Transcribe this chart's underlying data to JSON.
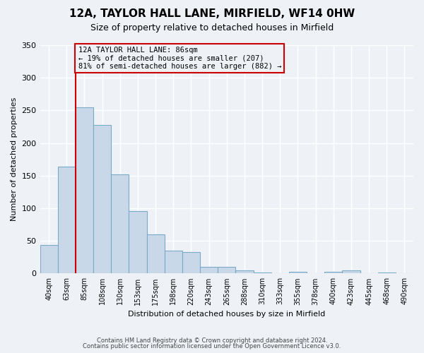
{
  "title": "12A, TAYLOR HALL LANE, MIRFIELD, WF14 0HW",
  "subtitle": "Size of property relative to detached houses in Mirfield",
  "xlabel": "Distribution of detached houses by size in Mirfield",
  "ylabel": "Number of detached properties",
  "bar_labels": [
    "40sqm",
    "63sqm",
    "85sqm",
    "108sqm",
    "130sqm",
    "153sqm",
    "175sqm",
    "198sqm",
    "220sqm",
    "243sqm",
    "265sqm",
    "288sqm",
    "310sqm",
    "333sqm",
    "355sqm",
    "378sqm",
    "400sqm",
    "423sqm",
    "445sqm",
    "468sqm",
    "490sqm"
  ],
  "bar_values": [
    44,
    164,
    255,
    228,
    152,
    96,
    60,
    35,
    33,
    10,
    10,
    5,
    2,
    0,
    3,
    0,
    3,
    5,
    0,
    2,
    1
  ],
  "bar_color": "#c8d8e8",
  "bar_edge_color": "#7aaac8",
  "property_line_x": 2,
  "property_line_color": "#cc0000",
  "annotation_box_text": "12A TAYLOR HALL LANE: 86sqm\n← 19% of detached houses are smaller (207)\n81% of semi-detached houses are larger (882) →",
  "annotation_box_color": "#cc0000",
  "ylim": [
    0,
    350
  ],
  "yticks": [
    0,
    50,
    100,
    150,
    200,
    250,
    300,
    350
  ],
  "footer_line1": "Contains HM Land Registry data © Crown copyright and database right 2024.",
  "footer_line2": "Contains public sector information licensed under the Open Government Licence v3.0.",
  "background_color": "#eef2f7",
  "grid_color": "#ffffff"
}
